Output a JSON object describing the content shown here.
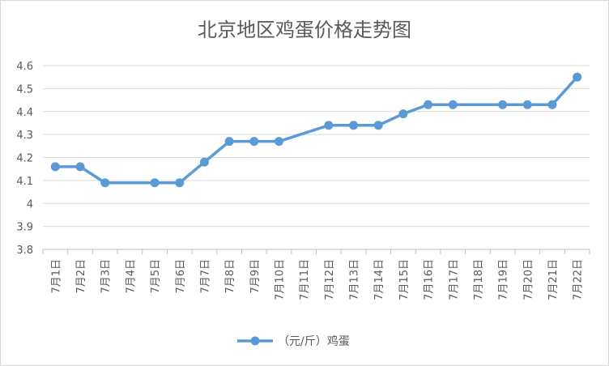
{
  "chart_data": {
    "type": "line",
    "title": "北京地区鸡蛋价格走势图",
    "categories": [
      "7月1日",
      "7月2日",
      "7月3日",
      "7月4日",
      "7月5日",
      "7月6日",
      "7月7日",
      "7月8日",
      "7月9日",
      "7月10日",
      "7月11日",
      "7月12日",
      "7月13日",
      "7月14日",
      "7月15日",
      "7月16日",
      "7月17日",
      "7月18日",
      "7月19日",
      "7月20日",
      "7月21日",
      "7月22日"
    ],
    "series": [
      {
        "name": "（元/斤）鸡蛋",
        "values": [
          4.16,
          4.16,
          4.09,
          null,
          4.09,
          4.09,
          4.18,
          4.27,
          4.27,
          4.27,
          null,
          4.34,
          4.34,
          4.34,
          4.39,
          4.43,
          4.43,
          null,
          4.43,
          4.43,
          4.43,
          4.55
        ]
      }
    ],
    "yticks": [
      "3.8",
      "3.9",
      "4",
      "4.1",
      "4.2",
      "4.3",
      "4.4",
      "4.5",
      "4.6"
    ],
    "ylim": [
      3.8,
      4.6
    ],
    "grid": true,
    "legend_position": "bottom",
    "color": "#5b9bd5"
  }
}
